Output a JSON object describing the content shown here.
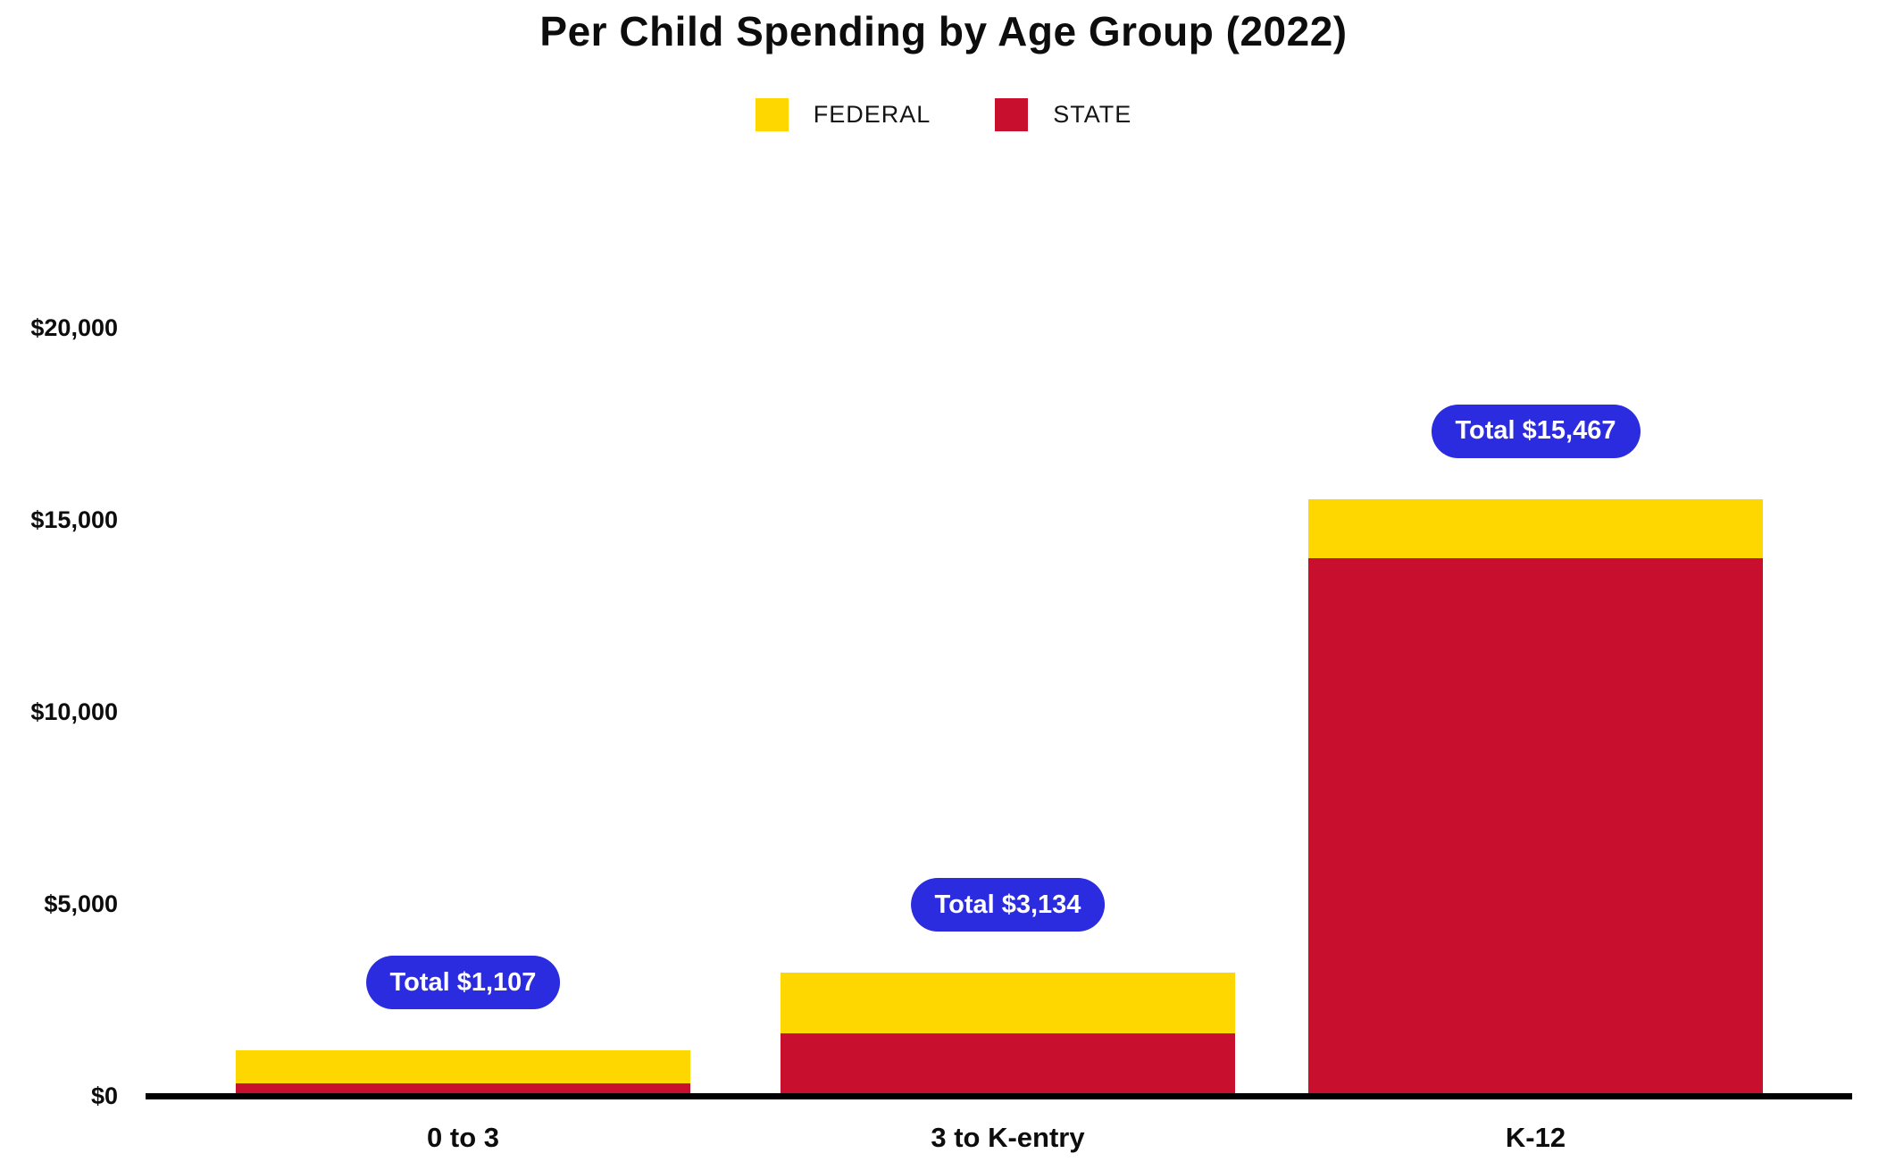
{
  "title": "Per Child Spending by Age Group (2022)",
  "legend": [
    {
      "label": "FEDERAL",
      "color": "#FFD700"
    },
    {
      "label": "STATE",
      "color": "#C8102E"
    }
  ],
  "colors": {
    "federal": "#FFD700",
    "state": "#C8102E",
    "total_pill": "#2B2BE0",
    "pill_text": "#FFFFFF",
    "axis": "#000000",
    "background": "#FFFFFF"
  },
  "chart_data": {
    "type": "bar",
    "stacked": true,
    "title": "Per Child Spending by Age Group (2022)",
    "categories": [
      "0 to 3",
      "3 to K-entry",
      "K-12"
    ],
    "series": [
      {
        "name": "FEDERAL",
        "color": "#FFD700",
        "values": [
          857,
          1584,
          1547
        ]
      },
      {
        "name": "STATE",
        "color": "#C8102E",
        "values": [
          250,
          1550,
          13920
        ]
      }
    ],
    "totals": [
      1107,
      3134,
      15467
    ],
    "total_labels": [
      "Total $1,107",
      "Total $3,134",
      "Total $15,467"
    ],
    "xlabel": "",
    "ylabel": "",
    "ylim": [
      0,
      20000
    ],
    "ytick_values": [
      0,
      5000,
      10000,
      15000,
      20000
    ],
    "ytick_labels": [
      "$0",
      "$5,000",
      "$10,000",
      "$15,000",
      "$20,000"
    ],
    "legend_position": "top",
    "grid": false,
    "note": "Stacked: STATE on bottom (red), FEDERAL on top (yellow). Only totals are labeled on chart; segment values estimated from bar proportions."
  }
}
